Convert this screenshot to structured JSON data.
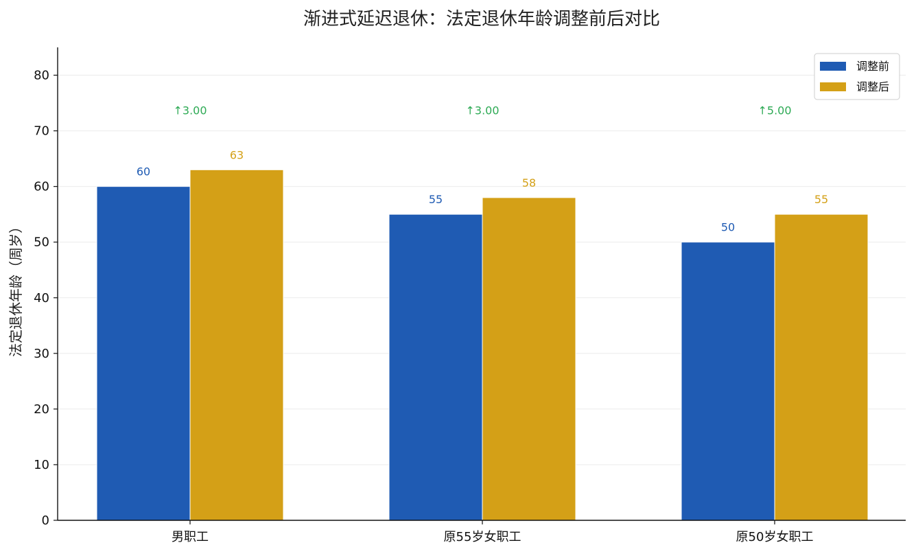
{
  "chart_data": {
    "type": "bar",
    "title": "渐进式延迟退休：法定退休年龄调整前后对比",
    "xlabel": "",
    "ylabel": "法定退休年龄（周岁）",
    "categories": [
      "男职工",
      "原55岁女职工",
      "原50岁女职工"
    ],
    "series": [
      {
        "name": "调整前",
        "values": [
          60,
          55,
          50
        ],
        "color": "#1f5bb3"
      },
      {
        "name": "调整后",
        "values": [
          63,
          58,
          55
        ],
        "color": "#d4a017"
      }
    ],
    "differences": [
      "↑3.00",
      "↑3.00",
      "↑5.00"
    ],
    "difference_color": "#2eaa55",
    "ylim": [
      0,
      85
    ],
    "yticks": [
      0,
      10,
      20,
      30,
      40,
      50,
      60,
      70,
      80
    ],
    "grid": true,
    "legend_position": "top-right"
  }
}
